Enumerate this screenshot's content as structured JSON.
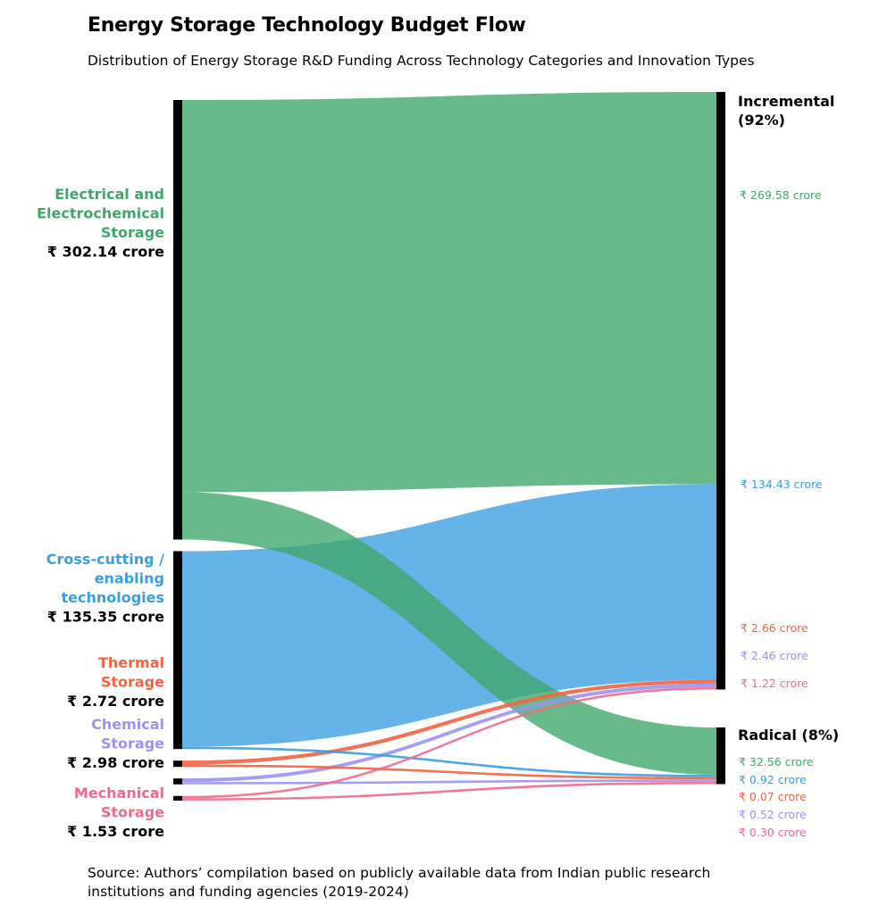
{
  "title": "Energy Storage Technology Budget Flow",
  "subtitle": "Distribution of Energy Storage R&D Funding Across Technology Categories and Innovation Types",
  "source": "Source: Authors’ compilation based on publicly available data from Indian public research institutions and funding agencies (2019-2024)",
  "chart_data": {
    "type": "sankey",
    "unit": "crore",
    "currency": "₹",
    "sources": [
      {
        "id": "electrical",
        "name_lines": [
          "Electrical and",
          "Electrochemical",
          "Storage"
        ],
        "total_label": "₹ 302.14 crore",
        "color": "#3fa76a"
      },
      {
        "id": "cross",
        "name_lines": [
          "Cross-cutting /",
          "enabling",
          "technologies"
        ],
        "total_label": "₹ 135.35 crore",
        "color": "#3a9ee2"
      },
      {
        "id": "thermal",
        "name_lines": [
          "Thermal",
          "Storage"
        ],
        "total_label": "₹ 2.72 crore",
        "color": "#f06445"
      },
      {
        "id": "chemical",
        "name_lines": [
          "Chemical",
          "Storage"
        ],
        "total_label": "₹ 2.98 crore",
        "color": "#9b92f0"
      },
      {
        "id": "mechanical",
        "name_lines": [
          "Mechanical",
          "Storage"
        ],
        "total_label": "₹ 1.53 crore",
        "color": "#ee6a8a"
      }
    ],
    "targets": [
      {
        "id": "incremental",
        "name_lines": [
          "Incremental",
          "(92%)"
        ]
      },
      {
        "id": "radical",
        "name_lines": [
          "Radical (8%)"
        ]
      }
    ],
    "flows": [
      {
        "source": "electrical",
        "target": "incremental",
        "value": 269.58,
        "label": "₹ 269.58 crore"
      },
      {
        "source": "electrical",
        "target": "radical",
        "value": 32.56,
        "label": "₹ 32.56 crore"
      },
      {
        "source": "cross",
        "target": "incremental",
        "value": 134.43,
        "label": "₹ 134.43 crore"
      },
      {
        "source": "cross",
        "target": "radical",
        "value": 0.92,
        "label": "₹ 0.92 crore"
      },
      {
        "source": "thermal",
        "target": "incremental",
        "value": 2.66,
        "label": "₹ 2.66 crore"
      },
      {
        "source": "thermal",
        "target": "radical",
        "value": 0.07,
        "label": "₹ 0.07 crore"
      },
      {
        "source": "chemical",
        "target": "incremental",
        "value": 2.46,
        "label": "₹ 2.46 crore"
      },
      {
        "source": "chemical",
        "target": "radical",
        "value": 0.52,
        "label": "₹ 0.52 crore"
      },
      {
        "source": "mechanical",
        "target": "incremental",
        "value": 1.22,
        "label": "₹ 1.22 crore"
      },
      {
        "source": "mechanical",
        "target": "radical",
        "value": 0.3,
        "label": "₹ 0.30 crore"
      }
    ]
  }
}
